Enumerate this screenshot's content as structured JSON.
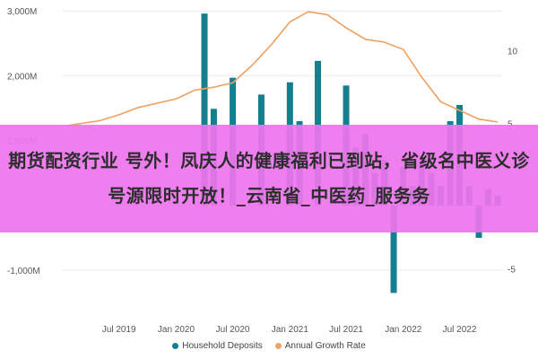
{
  "chart_data": {
    "type": "bar",
    "title": "",
    "x_tick_labels": [
      "Jul 2019",
      "Jan 2020",
      "Jul 2020",
      "Jan 2021",
      "Jul 2021",
      "Jan 2022",
      "Jul 2022"
    ],
    "y_left_ticks": [
      "3,000M",
      "2,000M",
      "1,000M",
      "",
      "-1,000M"
    ],
    "y_right_ticks": [
      "10",
      "5",
      "",
      "-5"
    ],
    "ylim_left": [
      -1400,
      3100
    ],
    "ylim_right": [
      -6.9,
      13.2
    ],
    "series": [
      {
        "name": "Household Deposits",
        "type": "bar",
        "axis": "left",
        "color": "#137f8f",
        "x": [
          "2020-04",
          "2020-05",
          "2020-07",
          "2020-10",
          "2021-01",
          "2021-02",
          "2021-04",
          "2021-07",
          "2021-08",
          "2021-09",
          "2021-10",
          "2021-11",
          "2021-12",
          "2022-01",
          "2022-02",
          "2022-03",
          "2022-04",
          "2022-05",
          "2022-06",
          "2022-07",
          "2022-08",
          "2022-09",
          "2022-10",
          "2022-11"
        ],
        "values": [
          2960,
          1490,
          1970,
          1710,
          1900,
          1300,
          2230,
          1850,
          900,
          1100,
          500,
          700,
          -1350,
          600,
          300,
          700,
          500,
          300,
          1300,
          1550,
          300,
          -500,
          250,
          150
        ]
      },
      {
        "name": "Annual Growth Rate",
        "type": "line",
        "axis": "right",
        "color": "#f0a060",
        "x": [
          "2019-01",
          "2019-03",
          "2019-05",
          "2019-07",
          "2019-09",
          "2019-11",
          "2020-01",
          "2020-03",
          "2020-05",
          "2020-07",
          "2020-09",
          "2020-11",
          "2021-01",
          "2021-03",
          "2021-05",
          "2021-07",
          "2021-09",
          "2021-11",
          "2022-01",
          "2022-03",
          "2022-05",
          "2022-07",
          "2022-09",
          "2022-11"
        ],
        "values": [
          4.8,
          5.0,
          5.2,
          5.6,
          6.1,
          6.4,
          6.7,
          7.3,
          7.5,
          7.8,
          9.0,
          10.4,
          12.0,
          12.7,
          12.5,
          11.6,
          10.8,
          10.6,
          10.1,
          8.2,
          6.5,
          5.9,
          5.3,
          5.1
        ]
      }
    ],
    "legend_position": "bottom"
  },
  "colors": {
    "bars": "#137f8f",
    "line": "#f0a060",
    "banner": "#ee74ee"
  },
  "overlay_banner": {
    "text": "期货配资行业 号外！凤庆人的健康福利已到站，省级名中医义诊号源限时开放！_云南省_中医药_服务务"
  },
  "legend": [
    {
      "label": "Household Deposits",
      "color": "#137f8f"
    },
    {
      "label": "Annual Growth Rate",
      "color": "#f0a060"
    }
  ]
}
